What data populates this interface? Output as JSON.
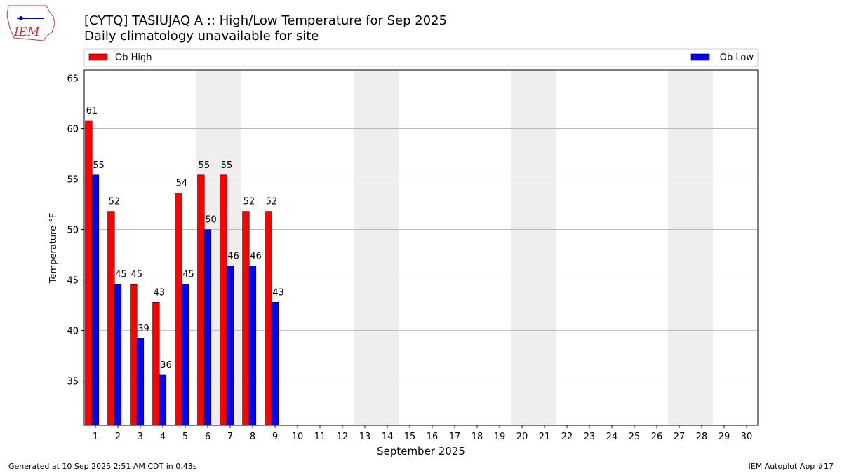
{
  "header": {
    "logo_text": "IEM"
  },
  "chart_data": {
    "type": "bar",
    "title": "[CYTQ] TASIUJAQ A :: High/Low Temperature for Sep 2025",
    "subtitle": "Daily climatology unavailable for site",
    "x_label": "September 2025",
    "y_label": "Temperature $^\\circ$F",
    "categories": [
      "1",
      "2",
      "3",
      "4",
      "5",
      "6",
      "7",
      "8",
      "9",
      "10",
      "11",
      "12",
      "13",
      "14",
      "15",
      "16",
      "17",
      "18",
      "19",
      "20",
      "21",
      "22",
      "23",
      "24",
      "25",
      "26",
      "27",
      "28",
      "29",
      "30"
    ],
    "series": [
      {
        "name": "Ob High",
        "color": "#ff0000",
        "values": [
          60.8,
          51.8,
          44.6,
          42.8,
          53.6,
          55.4,
          55.4,
          51.8,
          51.8,
          null,
          null,
          null,
          null,
          null,
          null,
          null,
          null,
          null,
          null,
          null,
          null,
          null,
          null,
          null,
          null,
          null,
          null,
          null,
          null,
          null
        ],
        "value_labels": [
          "61",
          "52",
          "45",
          "43",
          "54",
          "55",
          "55",
          "52",
          "52",
          null,
          null,
          null,
          null,
          null,
          null,
          null,
          null,
          null,
          null,
          null,
          null,
          null,
          null,
          null,
          null,
          null,
          null,
          null,
          null,
          null
        ]
      },
      {
        "name": "Ob Low",
        "color": "#0000ff",
        "values": [
          55.4,
          44.6,
          39.2,
          35.6,
          44.6,
          50.0,
          46.4,
          46.4,
          42.8,
          null,
          null,
          null,
          null,
          null,
          null,
          null,
          null,
          null,
          null,
          null,
          null,
          null,
          null,
          null,
          null,
          null,
          null,
          null,
          null,
          null
        ],
        "value_labels": [
          "55",
          "45",
          "39",
          "36",
          "45",
          "50",
          "46",
          "46",
          "43",
          null,
          null,
          null,
          null,
          null,
          null,
          null,
          null,
          null,
          null,
          null,
          null,
          null,
          null,
          null,
          null,
          null,
          null,
          null,
          null,
          null
        ]
      }
    ],
    "shaded_categories": [
      "6",
      "7",
      "13",
      "14",
      "20",
      "21",
      "27",
      "28"
    ],
    "ylim": [
      30.6,
      65.8
    ],
    "yticks": [
      35,
      40,
      45,
      50,
      55,
      60,
      65
    ],
    "grid": true,
    "legend": "top"
  },
  "footer": {
    "left": "Generated at 10 Sep 2025 2:51 AM CDT in 0.43s",
    "right": "IEM Autoplot App #17"
  }
}
